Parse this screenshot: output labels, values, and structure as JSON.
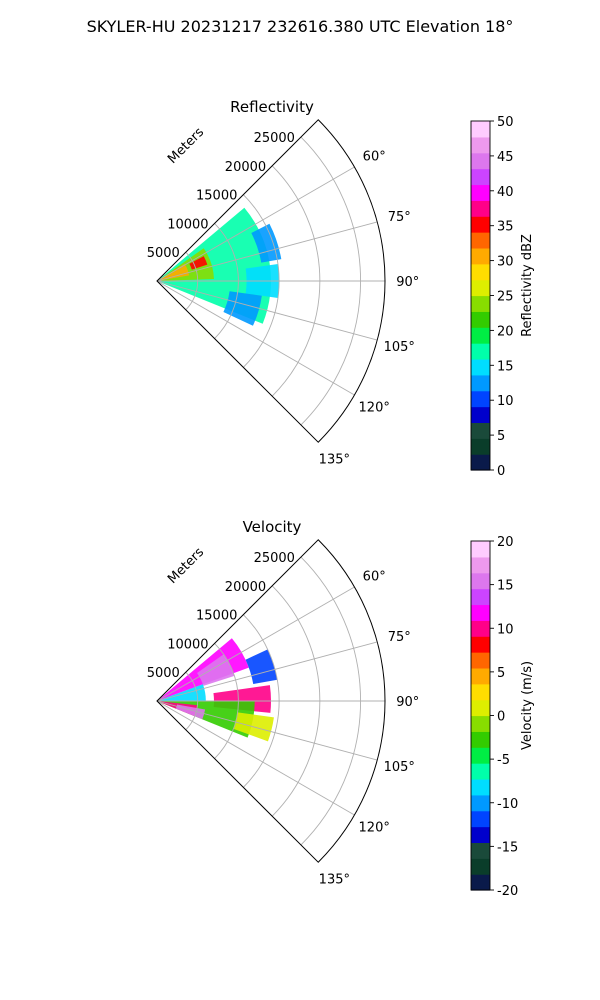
{
  "figure_title": "SKYLER-HU  20231217  232616.380 UTC Elevation 18°",
  "chart_data": [
    {
      "type": "heatmap",
      "projection": "polar-sector",
      "title": "Reflectivity",
      "range_label": "Meters",
      "azimuth_range_deg": [
        45,
        135
      ],
      "range_max_m": 28000,
      "range_ticks": [
        "5000",
        "10000",
        "15000",
        "20000",
        "25000"
      ],
      "range_tick_values": [
        5000,
        10000,
        15000,
        20000,
        25000
      ],
      "azimuth_ticks": [
        "60°",
        "75°",
        "90°",
        "105°",
        "120°",
        "135°"
      ],
      "azimuth_tick_values": [
        60,
        75,
        90,
        105,
        120,
        135
      ],
      "grid": true,
      "colorbar": {
        "label": "Reflectivity dBZ",
        "min": 0,
        "max": 50,
        "ticks": [
          "0",
          "5",
          "10",
          "15",
          "20",
          "25",
          "30",
          "35",
          "40",
          "45",
          "50"
        ],
        "tick_values": [
          0,
          5,
          10,
          15,
          20,
          25,
          30,
          35,
          40,
          45,
          50
        ],
        "stops": [
          "#0a1a4a",
          "#0a3d2a",
          "#1a4a3a",
          "#0000cc",
          "#0044ff",
          "#0099ff",
          "#00ddff",
          "#00ffaa",
          "#00ee44",
          "#33cc00",
          "#88dd00",
          "#ddee00",
          "#ffdd00",
          "#ffaa00",
          "#ff6600",
          "#ff0000",
          "#ff0088",
          "#ff00ff",
          "#cc44ff",
          "#dd77ee",
          "#ee99ee",
          "#ffccff"
        ]
      },
      "echo_regions": [
        {
          "az": [
            50,
            112
          ],
          "range_m": [
            0,
            14000
          ],
          "value": 17
        },
        {
          "az": [
            55,
            88
          ],
          "range_m": [
            0,
            7000
          ],
          "value": 24
        },
        {
          "az": [
            58,
            80
          ],
          "range_m": [
            500,
            4000
          ],
          "value": 30
        },
        {
          "az": [
            62,
            72
          ],
          "range_m": [
            4500,
            6500
          ],
          "value": 35
        },
        {
          "az": [
            63,
            80
          ],
          "range_m": [
            13000,
            15500
          ],
          "value": 13
        },
        {
          "az": [
            82,
            98
          ],
          "range_m": [
            11000,
            15000
          ],
          "value": 14
        },
        {
          "az": [
            98,
            115
          ],
          "range_m": [
            9000,
            13000
          ],
          "value": 13
        }
      ]
    },
    {
      "type": "heatmap",
      "projection": "polar-sector",
      "title": "Velocity",
      "range_label": "Meters",
      "azimuth_range_deg": [
        45,
        135
      ],
      "range_max_m": 28000,
      "range_ticks": [
        "5000",
        "10000",
        "15000",
        "20000",
        "25000"
      ],
      "range_tick_values": [
        5000,
        10000,
        15000,
        20000,
        25000
      ],
      "azimuth_ticks": [
        "60°",
        "75°",
        "90°",
        "105°",
        "120°",
        "135°"
      ],
      "azimuth_tick_values": [
        60,
        75,
        90,
        105,
        120,
        135
      ],
      "grid": true,
      "colorbar": {
        "label": "Velocity (m/s)",
        "min": -20,
        "max": 20,
        "ticks": [
          "-20",
          "-15",
          "-10",
          "-5",
          "0",
          "5",
          "10",
          "15",
          "20"
        ],
        "tick_values": [
          -20,
          -15,
          -10,
          -5,
          0,
          5,
          10,
          15,
          20
        ],
        "stops": [
          "#0a1a4a",
          "#0a3d2a",
          "#1a4a3a",
          "#0000cc",
          "#0044ff",
          "#0099ff",
          "#00ddff",
          "#00ffaa",
          "#00ee44",
          "#33cc00",
          "#88dd00",
          "#ddee00",
          "#ffdd00",
          "#ffaa00",
          "#ff6600",
          "#ff0000",
          "#ff0088",
          "#ff00ff",
          "#cc44ff",
          "#dd77ee",
          "#ee99ee",
          "#ffccff"
        ]
      },
      "echo_regions": [
        {
          "az": [
            50,
            70
          ],
          "range_m": [
            0,
            12000
          ],
          "value": 12
        },
        {
          "az": [
            55,
            72
          ],
          "range_m": [
            6000,
            10000
          ],
          "value": 16
        },
        {
          "az": [
            82,
            96
          ],
          "range_m": [
            7000,
            14000
          ],
          "value": 10
        },
        {
          "az": [
            70,
            90
          ],
          "range_m": [
            0,
            6000
          ],
          "value": -9
        },
        {
          "az": [
            90,
            112
          ],
          "range_m": [
            0,
            12000
          ],
          "value": -3
        },
        {
          "az": [
            96,
            112
          ],
          "range_m": [
            0,
            5000
          ],
          "value": 10
        },
        {
          "az": [
            100,
            112
          ],
          "range_m": [
            2500,
            6000
          ],
          "value": 16
        },
        {
          "az": [
            98,
            110
          ],
          "range_m": [
            10000,
            14500
          ],
          "value": 0
        },
        {
          "az": [
            65,
            80
          ],
          "range_m": [
            12000,
            15000
          ],
          "value": -12
        }
      ]
    }
  ]
}
